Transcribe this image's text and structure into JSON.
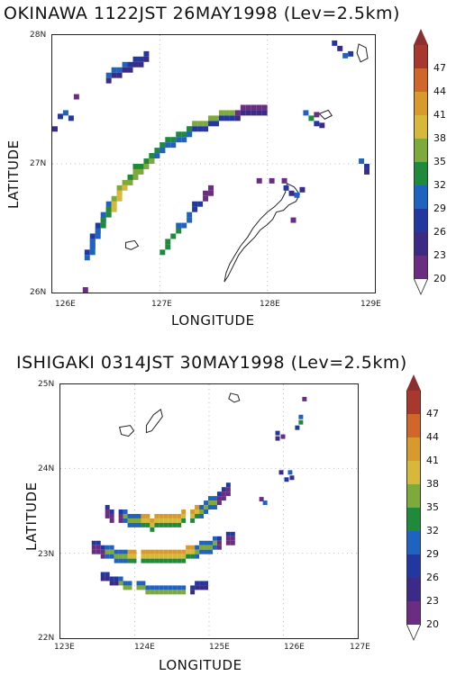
{
  "colors": {
    "levels": [
      "#6a2d82",
      "#3b2a86",
      "#2238a0",
      "#1f62c0",
      "#1e8a3a",
      "#7eaa3c",
      "#d8b83a",
      "#d89a2c",
      "#d0662a",
      "#a8372e"
    ],
    "top_triangle": "#8a2f32",
    "bottom_triangle": "#ffffff",
    "coast": "#222222",
    "grid": "#bbbbbb"
  },
  "panels": [
    {
      "title": "OKINAWA 1122JST 26MAY1998 (Lev=2.5km)",
      "xlabel": "LONGITUDE",
      "ylabel": "LATITUDE",
      "xticks": [
        "126E",
        "127E",
        "128E",
        "129E"
      ],
      "yticks": [
        "26N",
        "27N",
        "28N"
      ],
      "colorbar_labels": [
        "20",
        "23",
        "26",
        "29",
        "32",
        "35",
        "38",
        "41",
        "44",
        "47"
      ],
      "xlim": [
        126,
        129
      ],
      "ylim": [
        26,
        28
      ]
    },
    {
      "title": "ISHIGAKI 0314JST 30MAY1998 (Lev=2.5km)",
      "xlabel": "LONGITUDE",
      "ylabel": "LATITUDE",
      "xticks": [
        "123E",
        "124E",
        "125E",
        "126E",
        "127E"
      ],
      "yticks": [
        "22N",
        "23N",
        "24N",
        "25N"
      ],
      "colorbar_labels": [
        "20",
        "23",
        "26",
        "29",
        "32",
        "35",
        "38",
        "41",
        "44",
        "47"
      ],
      "xlim": [
        123,
        127
      ],
      "ylim": [
        22,
        25
      ]
    }
  ]
}
